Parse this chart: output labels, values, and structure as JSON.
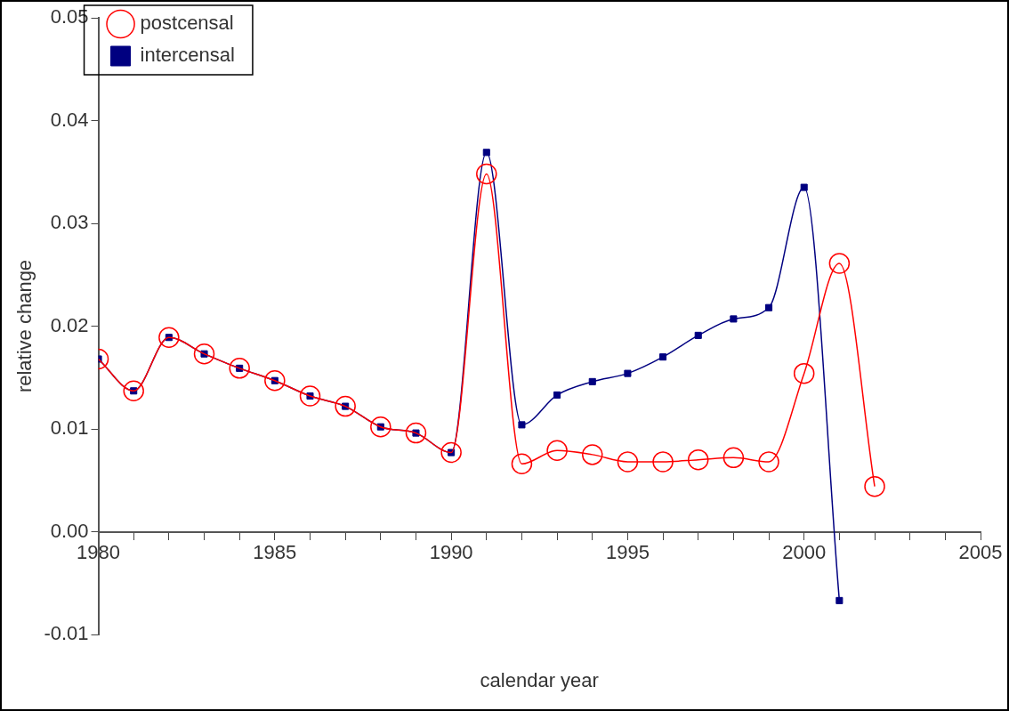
{
  "chart_data": {
    "type": "line",
    "xlabel": "calendar year",
    "ylabel": "relative change",
    "x": [
      1980,
      1981,
      1982,
      1983,
      1984,
      1985,
      1986,
      1987,
      1988,
      1989,
      1990,
      1991,
      1992,
      1993,
      1994,
      1995,
      1996,
      1997,
      1998,
      1999,
      2000,
      2001,
      2002
    ],
    "series": [
      {
        "name": "postcensal",
        "color": "#ff0000",
        "marker": "circle",
        "values": [
          0.0168,
          0.0137,
          0.0189,
          0.0173,
          0.0159,
          0.0147,
          0.0132,
          0.0122,
          0.0102,
          0.0096,
          0.0077,
          0.0348,
          0.0066,
          0.0079,
          0.0075,
          0.0068,
          0.0068,
          0.007,
          0.0072,
          0.0068,
          0.0154,
          0.0261,
          0.0044
        ]
      },
      {
        "name": "intercensal",
        "color": "#000080",
        "marker": "square",
        "values": [
          0.0168,
          0.0137,
          0.0189,
          0.0173,
          0.0159,
          0.0147,
          0.0132,
          0.0122,
          0.0102,
          0.0096,
          0.0077,
          0.0369,
          0.0104,
          0.0133,
          0.0146,
          0.0154,
          0.017,
          0.0191,
          0.0207,
          0.0218,
          0.0335,
          -0.0067,
          null
        ]
      }
    ],
    "xlim": [
      1980,
      2005
    ],
    "xticks": [
      1980,
      {
        "value": 1981,
        "label": null
      },
      {
        "value": 1982,
        "label": null
      },
      {
        "value": 1983,
        "label": null
      },
      {
        "value": 1984,
        "label": null
      },
      1985,
      {
        "value": 1986,
        "label": null
      },
      {
        "value": 1987,
        "label": null
      },
      {
        "value": 1988,
        "label": null
      },
      {
        "value": 1989,
        "label": null
      },
      1990,
      {
        "value": 1991,
        "label": null
      },
      {
        "value": 1992,
        "label": null
      },
      {
        "value": 1993,
        "label": null
      },
      {
        "value": 1994,
        "label": null
      },
      1995,
      {
        "value": 1996,
        "label": null
      },
      {
        "value": 1997,
        "label": null
      },
      {
        "value": 1998,
        "label": null
      },
      {
        "value": 1999,
        "label": null
      },
      2000,
      {
        "value": 2001,
        "label": null
      },
      {
        "value": 2002,
        "label": null
      },
      {
        "value": 2003,
        "label": null
      },
      {
        "value": 2004,
        "label": null
      },
      2005
    ],
    "ylim": [
      -0.01,
      0.05
    ],
    "yticks": [
      -0.01,
      {
        "value": 0,
        "label": "0.00"
      },
      0.01,
      0.02,
      0.03,
      0.04,
      0.05
    ],
    "grid": false,
    "legend": "top left",
    "line_style": "solid"
  }
}
